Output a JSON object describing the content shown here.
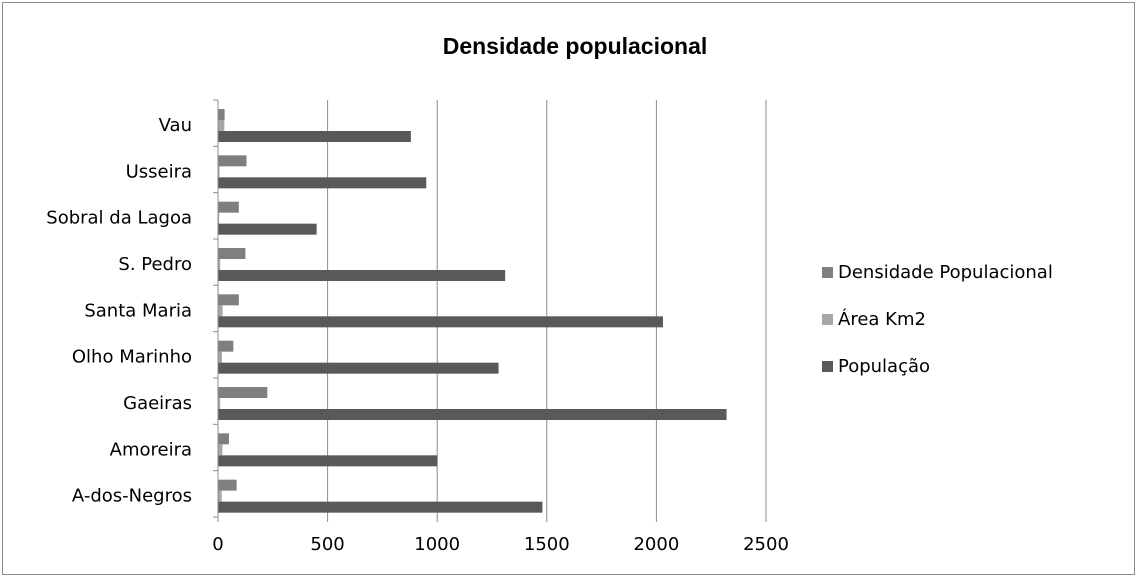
{
  "chart_data": {
    "type": "bar",
    "orientation": "horizontal",
    "title": "Densidade populacional",
    "categories": [
      "A-dos-Negros",
      "Amoreira",
      "Gaeiras",
      "Olho Marinho",
      "Santa Maria",
      "S. Pedro",
      "Sobral da Lagoa",
      "Usseira",
      "Vau"
    ],
    "series": [
      {
        "name": "Densidade Populacional",
        "color": "#7f7f7f",
        "values": [
          85,
          50,
          225,
          70,
          95,
          125,
          95,
          130,
          30
        ]
      },
      {
        "name": "Área Km2",
        "color": "#a6a6a6",
        "values": [
          17,
          20,
          10,
          18,
          21,
          10,
          5,
          7,
          29
        ]
      },
      {
        "name": "População",
        "color": "#595959",
        "values": [
          1480,
          1000,
          2320,
          1280,
          2030,
          1310,
          450,
          950,
          880
        ]
      }
    ],
    "xlim": [
      0,
      2500
    ],
    "xticks": [
      "0",
      "500",
      "1000",
      "1500",
      "2000",
      "2500"
    ],
    "grid": true,
    "legend_position": "right"
  }
}
